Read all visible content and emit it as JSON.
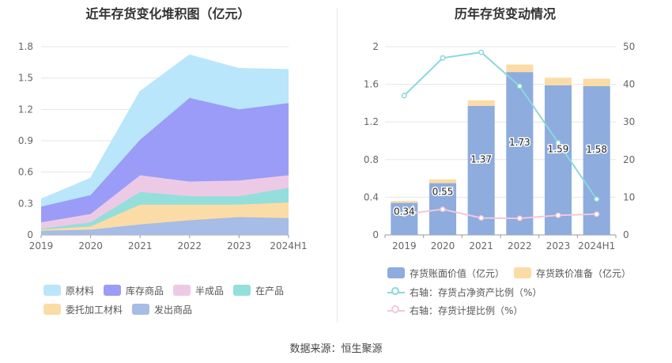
{
  "source": "数据来源：恒生聚源",
  "colors": {
    "原材料": "#b9e6fb",
    "库存商品": "#9b9cf7",
    "半成品": "#eccae6",
    "在产品": "#94dedb",
    "委托加工材料": "#fbdca6",
    "发出商品": "#a7bce6",
    "bar_book": "#8eacdd",
    "bar_reserve": "#fbdca6",
    "line_ratio": "#8ad8dc",
    "line_provision": "#f0c8dc"
  },
  "chart_data": [
    {
      "type": "area",
      "title": "近年存货变化堆积图（亿元）",
      "x": [
        "2019",
        "2020",
        "2021",
        "2022",
        "2023",
        "2024H1"
      ],
      "ylim": [
        0,
        1.8
      ],
      "yticks": [
        "0",
        "0.3",
        "0.6",
        "0.9",
        "1.2",
        "1.5",
        "1.8"
      ],
      "stack_order": [
        "发出商品",
        "委托加工材料",
        "在产品",
        "半成品",
        "库存商品",
        "原材料"
      ],
      "series": [
        {
          "name": "发出商品",
          "values": [
            0.04,
            0.05,
            0.1,
            0.14,
            0.17,
            0.16
          ]
        },
        {
          "name": "委托加工材料",
          "values": [
            0.01,
            0.03,
            0.19,
            0.15,
            0.12,
            0.15
          ]
        },
        {
          "name": "在产品",
          "values": [
            0.01,
            0.04,
            0.12,
            0.08,
            0.08,
            0.14
          ]
        },
        {
          "name": "半成品",
          "values": [
            0.06,
            0.08,
            0.16,
            0.14,
            0.15,
            0.12
          ]
        },
        {
          "name": "库存商品",
          "values": [
            0.15,
            0.18,
            0.34,
            0.8,
            0.68,
            0.69
          ]
        },
        {
          "name": "原材料",
          "values": [
            0.07,
            0.16,
            0.46,
            0.41,
            0.39,
            0.32
          ]
        }
      ],
      "legend": [
        "原材料",
        "库存商品",
        "半成品",
        "在产品",
        "委托加工材料",
        "发出商品"
      ],
      "legend_position": "bottom",
      "grid": true
    },
    {
      "type": "bar",
      "title": "历年存货变动情况",
      "categories": [
        "2019",
        "2020",
        "2021",
        "2022",
        "2023",
        "2024H1"
      ],
      "ylim": [
        0,
        2
      ],
      "yticks": [
        "0",
        "0.4",
        "0.8",
        "1.2",
        "1.6",
        "2"
      ],
      "y2lim": [
        0,
        50
      ],
      "y2ticks": [
        "0",
        "10",
        "20",
        "30",
        "40",
        "50"
      ],
      "series": [
        {
          "name": "存货账面价值（亿元）",
          "stack": true,
          "values": [
            0.34,
            0.55,
            1.37,
            1.73,
            1.59,
            1.58
          ],
          "labels": [
            "0.34",
            "0.55",
            "1.37",
            "1.73",
            "1.59",
            "1.58"
          ]
        },
        {
          "name": "存货跌价准备（亿元）",
          "stack": true,
          "values": [
            0.02,
            0.04,
            0.06,
            0.08,
            0.08,
            0.08
          ]
        },
        {
          "name": "右轴：存货占净资产比例（%）",
          "axis": "right",
          "type": "line",
          "values": [
            37,
            47,
            48.5,
            39.5,
            24.5,
            9.5
          ]
        },
        {
          "name": "右轴：存货计提比例（%）",
          "axis": "right",
          "type": "line",
          "values": [
            5.5,
            6.8,
            4.5,
            4.4,
            5.2,
            5.5
          ]
        }
      ],
      "legend_position": "bottom",
      "grid": true
    }
  ]
}
